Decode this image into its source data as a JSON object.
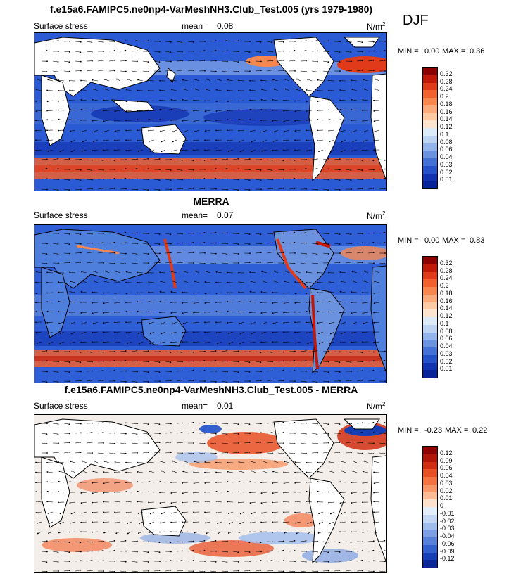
{
  "season": "DJF",
  "panels": [
    {
      "title": "f.e15a6.FAMIPC5.ne0np4-VarMeshNH3.Club_Test.005 (yrs 1979-1980)",
      "var_label": "Surface stress",
      "mean_label": "mean=",
      "mean_value": "0.08",
      "units": "N/m",
      "units_sup": "2",
      "min_label": "MIN =",
      "min_value": "0.00",
      "max_label": "MAX =",
      "max_value": "0.36",
      "colorbar": {
        "labels": [
          "0.32",
          "0.28",
          "0.24",
          "0.2",
          "0.18",
          "0.16",
          "0.14",
          "0.12",
          "0.1",
          "0.08",
          "0.06",
          "0.04",
          "0.03",
          "0.02",
          "0.01"
        ],
        "colors": [
          "#8b0000",
          "#c21807",
          "#e03a1a",
          "#f2602e",
          "#f7874f",
          "#fbab7b",
          "#fdcaa4",
          "#fde4cf",
          "#ddeaf8",
          "#bdd3f2",
          "#93b4ea",
          "#6a92df",
          "#4371d6",
          "#2552c9",
          "#1233b0",
          "#08229a"
        ]
      }
    },
    {
      "title": "MERRA",
      "var_label": "Surface stress",
      "mean_label": "mean=",
      "mean_value": "0.07",
      "units": "N/m",
      "units_sup": "2",
      "min_label": "MIN =",
      "min_value": "0.00",
      "max_label": "MAX =",
      "max_value": "0.83",
      "colorbar": {
        "labels": [
          "0.32",
          "0.28",
          "0.24",
          "0.2",
          "0.18",
          "0.16",
          "0.14",
          "0.12",
          "0.1",
          "0.08",
          "0.06",
          "0.04",
          "0.03",
          "0.02",
          "0.01"
        ],
        "colors": [
          "#8b0000",
          "#c21807",
          "#e03a1a",
          "#f2602e",
          "#f7874f",
          "#fbab7b",
          "#fdcaa4",
          "#fde4cf",
          "#ddeaf8",
          "#bdd3f2",
          "#93b4ea",
          "#6a92df",
          "#4371d6",
          "#2552c9",
          "#1233b0",
          "#08229a"
        ]
      }
    },
    {
      "title": "f.e15a6.FAMIPC5.ne0np4-VarMeshNH3.Club_Test.005 - MERRA",
      "var_label": "Surface stress",
      "mean_label": "mean=",
      "mean_value": "0.01",
      "units": "N/m",
      "units_sup": "2",
      "min_label": "MIN =",
      "min_value": "-0.23",
      "max_label": "MAX =",
      "max_value": "0.22",
      "colorbar": {
        "labels": [
          "0.12",
          "0.09",
          "0.06",
          "0.04",
          "0.03",
          "0.02",
          "0.01",
          "0",
          "-0.01",
          "-0.02",
          "-0.03",
          "-0.04",
          "-0.06",
          "-0.09",
          "-0.12"
        ],
        "colors": [
          "#8b0000",
          "#b11508",
          "#d12d12",
          "#e84f25",
          "#f27241",
          "#f89767",
          "#fbbb95",
          "#fde1cc",
          "#e4eefa",
          "#c3d6f3",
          "#9fbcec",
          "#7c9fe3",
          "#5680d9",
          "#3260cd",
          "#163fb6",
          "#0a2698"
        ]
      }
    }
  ]
}
